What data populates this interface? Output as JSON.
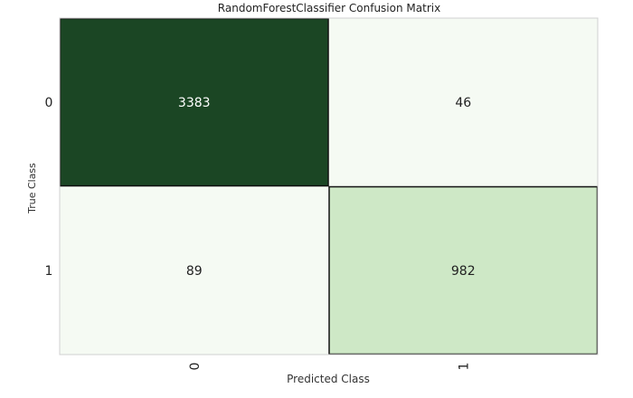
{
  "chart_data": {
    "type": "heatmap",
    "title": "RandomForestClassifier Confusion Matrix",
    "xlabel": "Predicted Class",
    "ylabel": "True Class",
    "x_categories": [
      "0",
      "1"
    ],
    "y_categories": [
      "0",
      "1"
    ],
    "matrix": [
      [
        3383,
        46
      ],
      [
        89,
        982
      ]
    ],
    "colors": {
      "dark": "#1b4624",
      "light": "#f5faf3",
      "mid": "#cde7c5",
      "text_on_dark": "#ffffff",
      "text_on_light": "#222222",
      "highlight_border": "#111111",
      "axis_border": "#d0d0d0"
    },
    "highlight_diagonal_border": true
  }
}
